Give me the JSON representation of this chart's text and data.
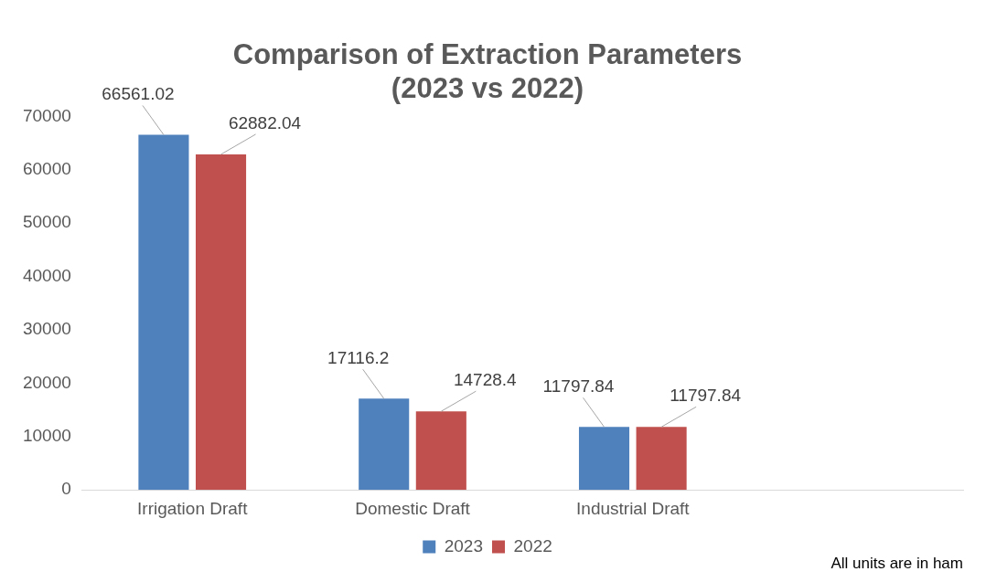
{
  "chart_data": {
    "type": "bar",
    "title": "Comparison of Extraction Parameters\n(2023 vs 2022)",
    "categories": [
      "Irrigation Draft",
      "Domestic Draft",
      "Industrial Draft",
      null
    ],
    "series": [
      {
        "name": "2023",
        "color": "#4f81bd",
        "values": [
          66561.02,
          17116.2,
          11797.84,
          null
        ]
      },
      {
        "name": "2022",
        "color": "#c0504d",
        "values": [
          62882.04,
          14728.4,
          11797.84,
          null
        ]
      }
    ],
    "ylim": [
      0,
      70000
    ],
    "yticks": [
      0,
      10000,
      20000,
      30000,
      40000,
      50000,
      60000,
      70000
    ],
    "grid": false,
    "legend": "bottom",
    "data_labels": true,
    "annotations": [
      "All units are in ham"
    ]
  }
}
